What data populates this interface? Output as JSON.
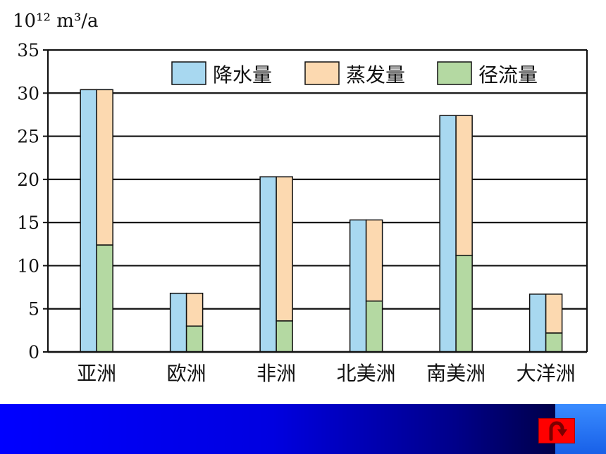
{
  "unit_label": "10¹² m³/a",
  "colors": {
    "precipitation": "#a8d8f0",
    "evaporation": "#fcd9b0",
    "runoff": "#b4d9a2",
    "footer_start": "#0000ff",
    "footer_end": "#000028",
    "back_button": "#ff0000"
  },
  "chart_data": {
    "type": "bar",
    "categories": [
      "亚洲",
      "欧洲",
      "非洲",
      "北美洲",
      "南美洲",
      "大洋洲"
    ],
    "series": [
      {
        "name": "降水量",
        "values": [
          30.4,
          6.8,
          20.3,
          15.3,
          27.4,
          6.7
        ]
      },
      {
        "name": "蒸发量",
        "values": [
          18.0,
          3.8,
          16.7,
          9.4,
          16.2,
          4.5
        ]
      },
      {
        "name": "径流量",
        "values": [
          12.4,
          3.0,
          3.6,
          5.9,
          11.2,
          2.2
        ]
      }
    ],
    "stacked_series": [
      1,
      2
    ],
    "yticks": [
      0,
      5,
      10,
      15,
      20,
      25,
      30,
      35
    ],
    "ylim": [
      0,
      35
    ],
    "ylabel": "10¹² m³/a",
    "grid": true,
    "legend_position": "top-right"
  },
  "footer": {
    "back_icon": "u-turn-arrow-icon"
  }
}
